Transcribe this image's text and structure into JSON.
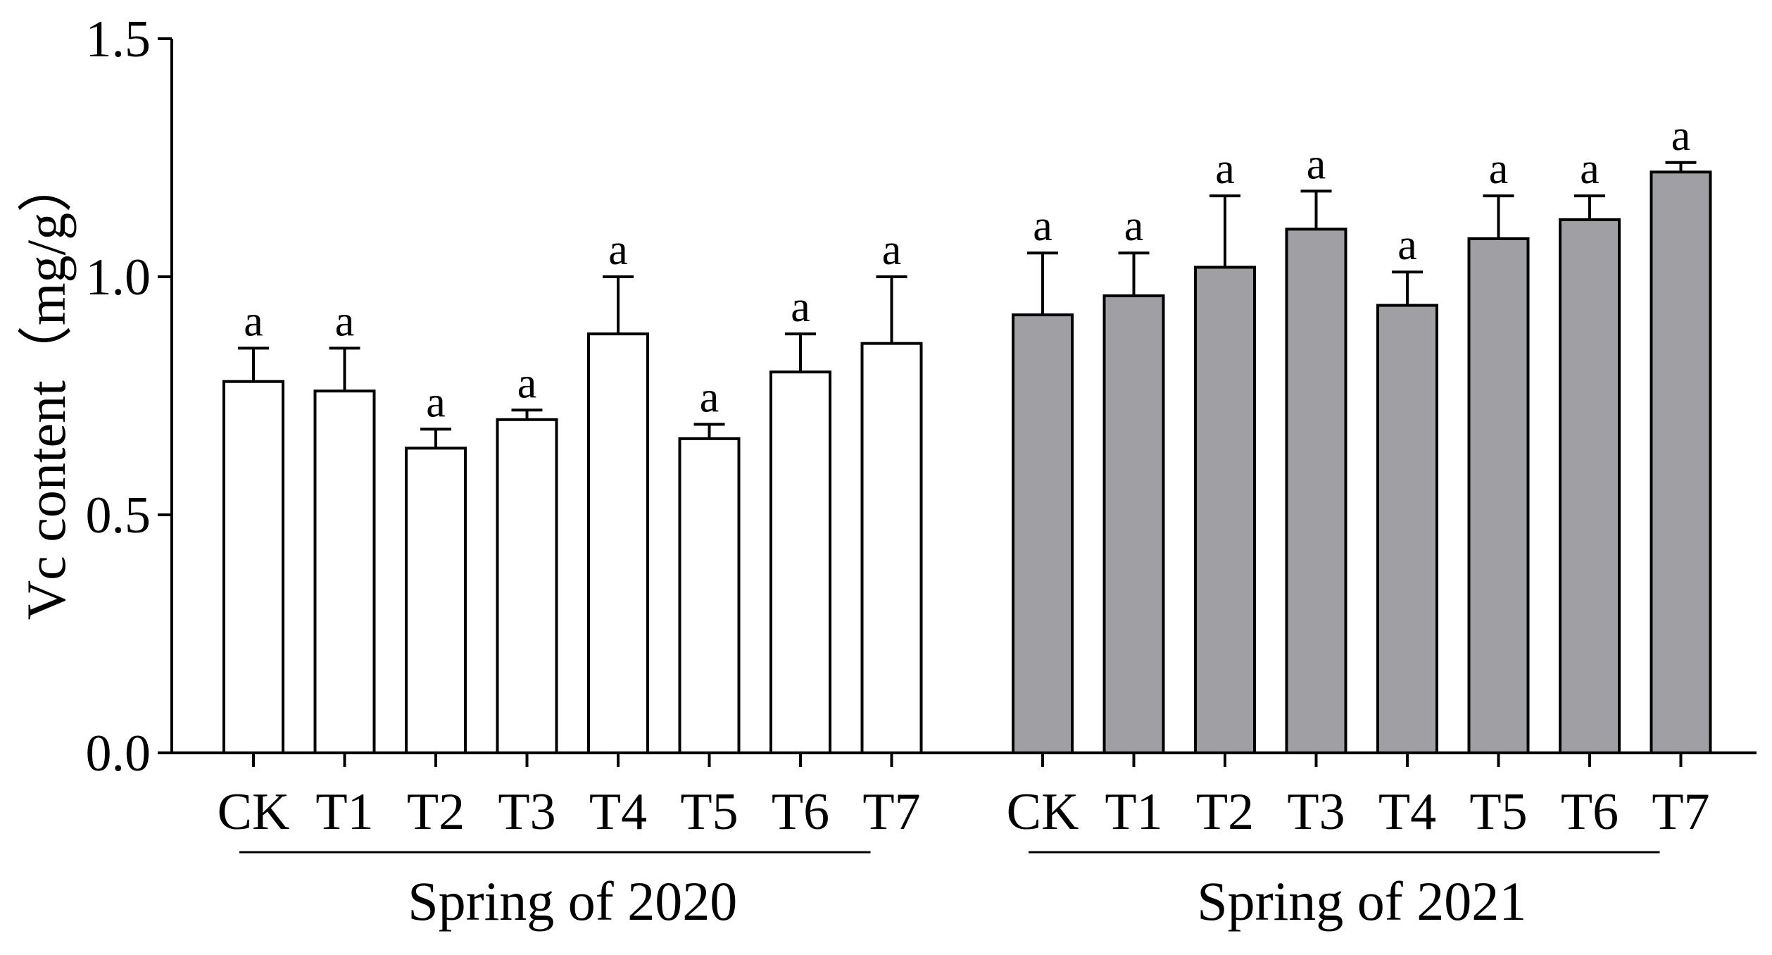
{
  "chart_data": {
    "type": "bar",
    "ylabel": "Vc content（mg/g）",
    "ylim": [
      0,
      1.5
    ],
    "yticks": [
      "0.0",
      "0.5",
      "1.0",
      "1.5"
    ],
    "grid": false,
    "groups": [
      {
        "label": "Spring of 2020",
        "fill": "#ffffff",
        "categories": [
          "CK",
          "T1",
          "T2",
          "T3",
          "T4",
          "T5",
          "T6",
          "T7"
        ],
        "values": [
          0.78,
          0.76,
          0.64,
          0.7,
          0.88,
          0.66,
          0.8,
          0.86
        ],
        "errors": [
          0.07,
          0.09,
          0.04,
          0.02,
          0.12,
          0.03,
          0.08,
          0.14
        ],
        "significance": [
          "a",
          "a",
          "a",
          "a",
          "a",
          "a",
          "a",
          "a"
        ]
      },
      {
        "label": "Spring of 2021",
        "fill": "#a0a0a4",
        "categories": [
          "CK",
          "T1",
          "T2",
          "T3",
          "T4",
          "T5",
          "T6",
          "T7"
        ],
        "values": [
          0.92,
          0.96,
          1.02,
          1.1,
          0.94,
          1.08,
          1.12,
          1.22
        ],
        "errors": [
          0.13,
          0.09,
          0.15,
          0.08,
          0.07,
          0.09,
          0.05,
          0.02
        ],
        "significance": [
          "a",
          "a",
          "a",
          "a",
          "a",
          "a",
          "a",
          "a"
        ]
      }
    ]
  },
  "colors": {
    "axis": "#000000",
    "bar_outline": "#000000"
  }
}
